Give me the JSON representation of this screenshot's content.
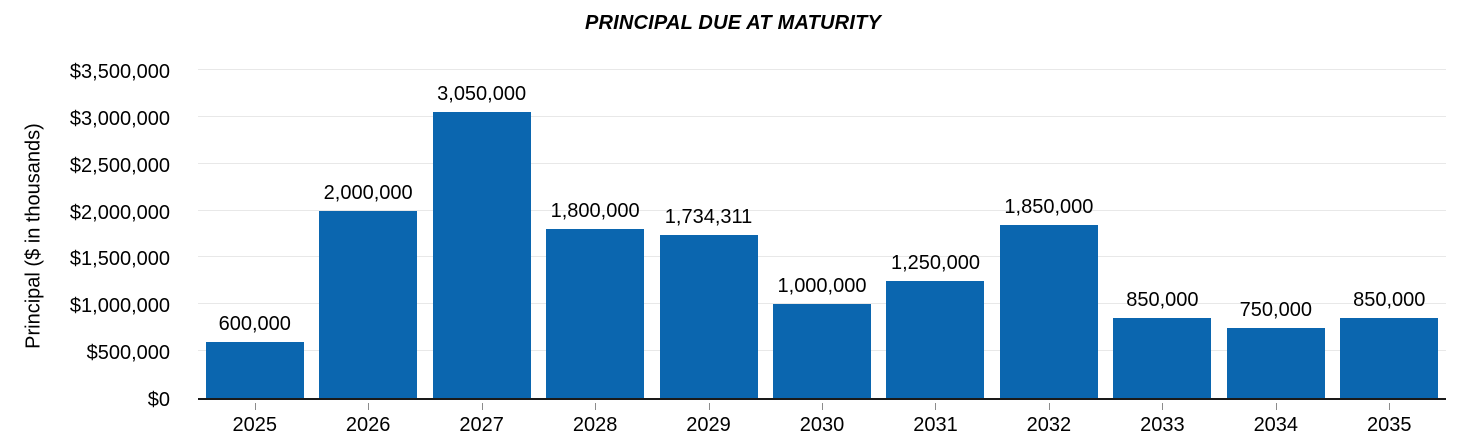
{
  "colors": {
    "bar": "#0B66AF",
    "gridline": "#E8E8E8",
    "axis_line": "#1A1A1A",
    "tick_mark": "#8C8C8C",
    "text": "#000000",
    "background": "#FFFFFF"
  },
  "chart_data": {
    "type": "bar",
    "title": "PRINCIPAL DUE AT MATURITY",
    "ylabel": "Principal ($ in thousands)",
    "xlabel": "",
    "categories": [
      "2025",
      "2026",
      "2027",
      "2028",
      "2029",
      "2030",
      "2031",
      "2032",
      "2033",
      "2034",
      "2035"
    ],
    "values": [
      600000,
      2000000,
      3050000,
      1800000,
      1734311,
      1000000,
      1250000,
      1850000,
      850000,
      750000,
      850000
    ],
    "bar_labels": [
      "600,000",
      "2,000,000",
      "3,050,000",
      "1,800,000",
      "1,734,311",
      "1,000,000",
      "1,250,000",
      "1,850,000",
      "850,000",
      "750,000",
      "850,000"
    ],
    "ylim": [
      0,
      3500000
    ],
    "yticks": [
      0,
      500000,
      1000000,
      1500000,
      2000000,
      2500000,
      3000000,
      3500000
    ],
    "ytick_labels": [
      "$0",
      "$500,000",
      "$1,000,000",
      "$1,500,000",
      "$2,000,000",
      "$2,500,000",
      "$3,000,000",
      "$3,500,000"
    ],
    "grid": true,
    "legend": false
  }
}
